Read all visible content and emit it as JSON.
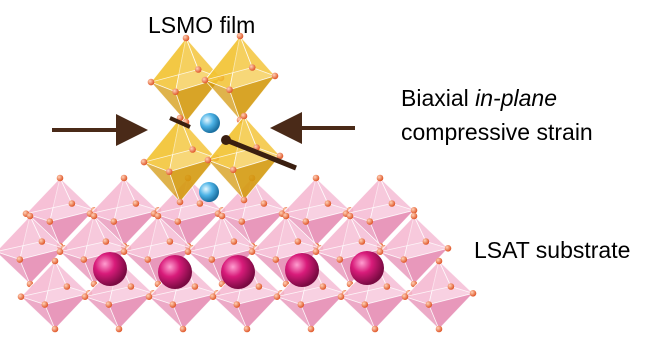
{
  "labels": {
    "film": "LSMO film",
    "strain_line1_plain": "Biaxial ",
    "strain_line1_italic": "in-plane",
    "strain_line2": "compressive strain",
    "substrate": "LSAT substrate"
  },
  "colors": {
    "film_octahedra": "#f2c230",
    "film_octahedra_dark": "#d49a10",
    "substrate_octahedra": "#f5b9d2",
    "substrate_octahedra_dark": "#e58db4",
    "oxygen_atoms": "#f07a45",
    "a_site_film": "#4db3e6",
    "a_site_substrate": "#d81b7a",
    "arrow": "#4a2a18"
  }
}
